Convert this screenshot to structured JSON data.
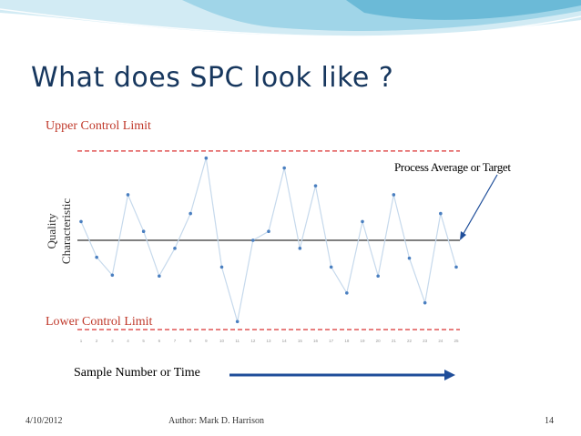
{
  "slide": {
    "title": "What does SPC look like ?",
    "footer": {
      "date": "4/10/2012",
      "author": "Author: Mark D. Harrison",
      "page": "14"
    }
  },
  "colors": {
    "title": "#17375e",
    "limit_lines": "#e05555",
    "limit_text": "#c0392b",
    "data_line": "#c6d9ec",
    "data_points": "#4a7fc0",
    "average_line": "#808080",
    "arrow": "#1f4e9a",
    "background_wave": "#3fa4c8"
  },
  "chart_data": {
    "type": "line",
    "title": "",
    "xlabel": "Sample Number or Time",
    "ylabel_lines": [
      "Quality",
      "Characteristic"
    ],
    "x": [
      1,
      2,
      3,
      4,
      5,
      6,
      7,
      8,
      9,
      10,
      11,
      12,
      13,
      14,
      15,
      16,
      17,
      18,
      19,
      20,
      21,
      22,
      23,
      24,
      25
    ],
    "tick_labels": [
      "1",
      "2",
      "3",
      "4",
      "5",
      "6",
      "7",
      "8",
      "9",
      "10",
      "11",
      "12",
      "13",
      "14",
      "15",
      "16",
      "17",
      "18",
      "19",
      "20",
      "21",
      "22",
      "23",
      "24",
      "25"
    ],
    "values": [
      1.05,
      -0.95,
      -1.95,
      2.55,
      0.5,
      -2.0,
      -0.45,
      1.5,
      4.6,
      -1.5,
      -4.55,
      0.0,
      0.5,
      4.05,
      -0.45,
      3.05,
      -1.5,
      -2.95,
      1.05,
      -2.0,
      2.55,
      -1.0,
      -3.5,
      1.5,
      -1.5
    ],
    "ylim": [
      -5.3,
      5.3
    ],
    "upper_control_limit": {
      "label": "Upper Control Limit",
      "value": 5.0
    },
    "lower_control_limit": {
      "label": "Lower Control Limit",
      "value": -5.0
    },
    "process_average": {
      "label": "Process Average or Target",
      "value": 0
    },
    "grid": false
  }
}
